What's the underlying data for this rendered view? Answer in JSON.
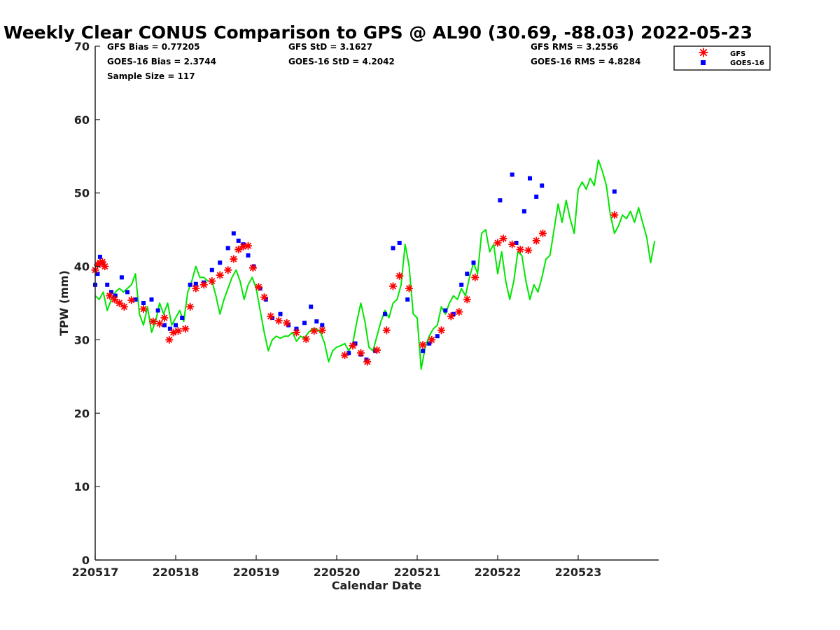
{
  "chart_data": {
    "type": "scatter",
    "title": "Weekly Clear CONUS Comparison to GPS @ AL90 (30.69, -88.03) 2022-05-23",
    "xlabel": "Calendar Date",
    "ylabel": "TPW (mm)",
    "xlim": [
      220517,
      220524
    ],
    "ylim": [
      0,
      70
    ],
    "x_ticks": [
      "220517",
      "220518",
      "220519",
      "220520",
      "220521",
      "220522",
      "220523"
    ],
    "y_ticks": [
      0,
      10,
      20,
      30,
      40,
      50,
      60,
      70
    ],
    "grid": false,
    "legend_position": "top-right",
    "stats": {
      "gfs_bias": "GFS Bias = 0.77205",
      "goes_bias": "GOES-16 Bias = 2.3744",
      "sample_size": "Sample Size = 117",
      "gfs_std": "GFS StD = 3.1627",
      "goes_std": "GOES-16 StD = 4.2042",
      "gfs_rms": "GFS RMS = 3.2556",
      "goes_rms": "GOES-16 RMS = 4.8284"
    },
    "series": [
      {
        "name": "GFS",
        "marker": "asterisk",
        "color": "#ff0000",
        "x": [
          220517.0,
          220517.03,
          220517.06,
          220517.09,
          220517.12,
          220517.18,
          220517.24,
          220517.3,
          220517.36,
          220517.45,
          220517.6,
          220517.72,
          220517.8,
          220517.86,
          220517.92,
          220517.97,
          220518.03,
          220518.12,
          220518.18,
          220518.25,
          220518.35,
          220518.45,
          220518.55,
          220518.65,
          220518.72,
          220518.78,
          220518.84,
          220518.9,
          220518.96,
          220519.03,
          220519.1,
          220519.18,
          220519.28,
          220519.38,
          220519.5,
          220519.62,
          220519.72,
          220519.82,
          220520.1,
          220520.2,
          220520.3,
          220520.38,
          220520.5,
          220520.62,
          220520.7,
          220520.78,
          220520.9,
          220521.07,
          220521.18,
          220521.3,
          220521.42,
          220521.52,
          220521.62,
          220521.72,
          220522.0,
          220522.07,
          220522.18,
          220522.28,
          220522.38,
          220522.48,
          220522.56,
          220523.45
        ],
        "y": [
          39.5,
          40.2,
          40.5,
          40.6,
          40.0,
          36.0,
          35.5,
          35.0,
          34.5,
          35.4,
          34.2,
          32.5,
          32.2,
          33.0,
          30.0,
          31.0,
          31.2,
          31.5,
          34.5,
          37.0,
          37.5,
          38.0,
          38.8,
          39.5,
          41.0,
          42.3,
          42.7,
          42.8,
          39.8,
          37.2,
          35.8,
          33.2,
          32.6,
          32.3,
          31.0,
          30.1,
          31.2,
          31.3,
          27.9,
          29.2,
          28.2,
          27.0,
          28.6,
          31.3,
          37.3,
          38.7,
          37.0,
          29.3,
          30.0,
          31.3,
          33.2,
          33.8,
          35.5,
          38.5,
          43.2,
          43.8,
          43.0,
          42.3,
          42.2,
          43.5,
          44.5,
          47.0
        ]
      },
      {
        "name": "GOES-16",
        "marker": "square",
        "color": "#0000ff",
        "x": [
          220517.0,
          220517.03,
          220517.06,
          220517.09,
          220517.15,
          220517.2,
          220517.25,
          220517.33,
          220517.4,
          220517.5,
          220517.6,
          220517.7,
          220517.78,
          220517.86,
          220517.93,
          220518.0,
          220518.08,
          220518.18,
          220518.25,
          220518.35,
          220518.45,
          220518.55,
          220518.65,
          220518.72,
          220518.78,
          220518.84,
          220518.9,
          220518.97,
          220519.05,
          220519.12,
          220519.2,
          220519.3,
          220519.4,
          220519.5,
          220519.6,
          220519.68,
          220519.75,
          220519.82,
          220520.15,
          220520.23,
          220520.3,
          220520.37,
          220520.48,
          220520.6,
          220520.7,
          220520.78,
          220520.88,
          220521.07,
          220521.15,
          220521.25,
          220521.35,
          220521.45,
          220521.55,
          220521.62,
          220521.7,
          220522.03,
          220522.18,
          220522.23,
          220522.33,
          220522.4,
          220522.48,
          220522.55,
          220523.45
        ],
        "y": [
          37.5,
          39.0,
          41.3,
          40.5,
          37.5,
          36.5,
          36.0,
          38.5,
          36.5,
          35.5,
          35.0,
          35.5,
          34.0,
          32.0,
          31.5,
          32.0,
          33.0,
          37.5,
          37.6,
          37.8,
          39.5,
          40.5,
          42.5,
          44.5,
          43.5,
          43.0,
          41.5,
          40.0,
          37.0,
          35.5,
          33.0,
          33.5,
          32.0,
          31.5,
          32.3,
          34.5,
          32.5,
          32.0,
          28.2,
          29.5,
          28.0,
          27.3,
          28.5,
          33.5,
          42.5,
          43.2,
          35.5,
          28.5,
          29.5,
          30.5,
          34.0,
          33.5,
          37.5,
          39.0,
          40.5,
          49.0,
          52.5,
          43.2,
          47.5,
          52.0,
          49.5,
          51.0,
          50.2
        ]
      },
      {
        "name": "GPS",
        "marker": "line",
        "color": "#00e600",
        "x": [
          220517.0,
          220517.05,
          220517.1,
          220517.15,
          220517.2,
          220517.25,
          220517.3,
          220517.35,
          220517.4,
          220517.45,
          220517.5,
          220517.55,
          220517.6,
          220517.65,
          220517.7,
          220517.75,
          220517.8,
          220517.85,
          220517.9,
          220517.95,
          220518.0,
          220518.05,
          220518.1,
          220518.15,
          220518.2,
          220518.25,
          220518.3,
          220518.35,
          220518.4,
          220518.45,
          220518.5,
          220518.55,
          220518.6,
          220518.65,
          220518.7,
          220518.75,
          220518.8,
          220518.85,
          220518.9,
          220518.95,
          220519.0,
          220519.05,
          220519.1,
          220519.15,
          220519.2,
          220519.25,
          220519.3,
          220519.35,
          220519.4,
          220519.45,
          220519.5,
          220519.55,
          220519.6,
          220519.65,
          220519.7,
          220519.75,
          220519.8,
          220519.85,
          220519.9,
          220519.95,
          220520.0,
          220520.05,
          220520.1,
          220520.15,
          220520.2,
          220520.25,
          220520.3,
          220520.35,
          220520.4,
          220520.45,
          220520.5,
          220520.55,
          220520.6,
          220520.65,
          220520.7,
          220520.75,
          220520.8,
          220520.85,
          220520.9,
          220520.95,
          220521.0,
          220521.05,
          220521.1,
          220521.15,
          220521.2,
          220521.25,
          220521.3,
          220521.35,
          220521.4,
          220521.45,
          220521.5,
          220521.55,
          220521.6,
          220521.65,
          220521.7,
          220521.75,
          220521.8,
          220521.85,
          220521.9,
          220521.95,
          220522.0,
          220522.05,
          220522.1,
          220522.15,
          220522.2,
          220522.25,
          220522.3,
          220522.35,
          220522.4,
          220522.45,
          220522.5,
          220522.55,
          220522.6,
          220522.65,
          220522.7,
          220522.75,
          220522.8,
          220522.85,
          220522.9,
          220522.95,
          220523.0,
          220523.05,
          220523.1,
          220523.15,
          220523.2,
          220523.25,
          220523.3,
          220523.35,
          220523.4,
          220523.45,
          220523.5,
          220523.55,
          220523.6,
          220523.65,
          220523.7,
          220523.75,
          220523.8,
          220523.85,
          220523.9,
          220523.95
        ],
        "y": [
          36.0,
          35.5,
          36.5,
          34.0,
          35.5,
          36.5,
          37.0,
          36.5,
          37.0,
          37.5,
          39.0,
          33.5,
          32.0,
          34.5,
          31.0,
          32.5,
          35.0,
          33.5,
          35.0,
          32.0,
          33.0,
          34.0,
          32.5,
          36.5,
          38.0,
          40.0,
          38.5,
          38.5,
          38.0,
          38.0,
          36.0,
          33.5,
          35.5,
          37.0,
          38.5,
          39.5,
          38.0,
          35.5,
          37.5,
          38.5,
          37.0,
          34.0,
          31.0,
          28.5,
          30.0,
          30.5,
          30.2,
          30.5,
          30.5,
          31.0,
          29.8,
          30.5,
          30.2,
          31.0,
          31.5,
          31.5,
          31.0,
          29.5,
          27.0,
          28.5,
          29.0,
          29.2,
          29.5,
          28.5,
          29.5,
          32.5,
          35.0,
          32.5,
          29.0,
          28.5,
          30.5,
          32.5,
          34.0,
          33.0,
          35.0,
          35.5,
          37.5,
          43.0,
          40.0,
          33.5,
          33.0,
          26.0,
          29.0,
          30.5,
          31.5,
          32.0,
          34.5,
          33.5,
          35.0,
          36.0,
          35.5,
          37.0,
          36.0,
          38.5,
          40.5,
          39.0,
          44.5,
          45.0,
          42.0,
          43.0,
          39.0,
          42.0,
          38.0,
          35.5,
          38.0,
          42.0,
          41.5,
          38.0,
          35.5,
          37.5,
          36.5,
          38.5,
          41.0,
          41.5,
          45.0,
          48.5,
          46.0,
          49.0,
          46.5,
          44.5,
          50.5,
          51.5,
          50.5,
          52.0,
          51.0,
          54.5,
          53.0,
          51.0,
          47.0,
          44.5,
          45.5,
          47.0,
          46.5,
          47.5,
          46.0,
          48.0,
          46.0,
          44.0,
          40.5,
          43.5
        ]
      }
    ]
  }
}
